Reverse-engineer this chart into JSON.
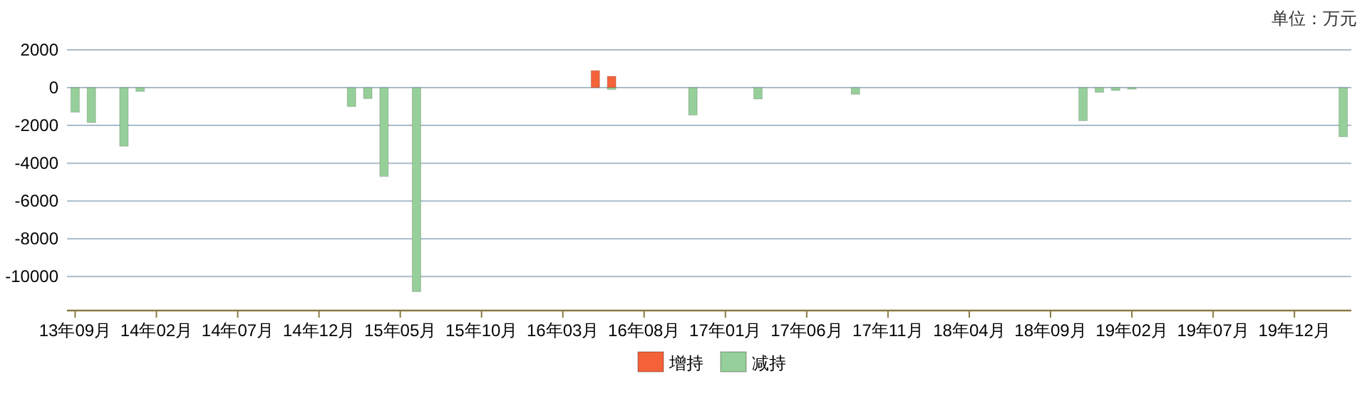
{
  "chart_data": {
    "type": "bar",
    "annotations": [
      "单位：万元"
    ],
    "categories": [
      "13年09月",
      null,
      null,
      null,
      null,
      "14年02月",
      null,
      null,
      null,
      null,
      "14年07月",
      null,
      null,
      null,
      null,
      "14年12月",
      null,
      null,
      null,
      null,
      "15年05月",
      null,
      null,
      null,
      null,
      "15年10月",
      null,
      null,
      null,
      null,
      "16年03月",
      null,
      null,
      null,
      null,
      "16年08月",
      null,
      null,
      null,
      null,
      "17年01月",
      null,
      null,
      null,
      null,
      "17年06月",
      null,
      null,
      null,
      null,
      "17年11月",
      null,
      null,
      null,
      null,
      "18年04月",
      null,
      null,
      null,
      null,
      "18年09月",
      null,
      null,
      null,
      null,
      "19年02月",
      null,
      null,
      null,
      null,
      "19年07月",
      null,
      null,
      null,
      null,
      "19年12月",
      null,
      null,
      null
    ],
    "series": [
      {
        "name": "增持",
        "color": "#f4623a",
        "values": [
          null,
          null,
          null,
          null,
          null,
          null,
          null,
          null,
          null,
          null,
          null,
          null,
          null,
          null,
          null,
          null,
          null,
          null,
          null,
          null,
          null,
          null,
          null,
          null,
          null,
          null,
          null,
          null,
          null,
          null,
          null,
          null,
          900,
          600,
          null,
          null,
          null,
          null,
          null,
          null,
          null,
          null,
          null,
          null,
          null,
          null,
          null,
          null,
          null,
          null,
          null,
          null,
          null,
          null,
          null,
          null,
          null,
          null,
          null,
          null,
          null,
          null,
          null,
          null,
          null,
          null,
          null,
          null,
          null,
          null,
          null,
          null,
          null,
          null,
          null,
          null,
          null,
          null,
          null
        ]
      },
      {
        "name": "减持",
        "color": "#96cf99",
        "values": [
          -1300,
          -1850,
          null,
          -3100,
          -200,
          null,
          null,
          null,
          null,
          null,
          null,
          null,
          null,
          null,
          null,
          null,
          null,
          -1000,
          -580,
          -4700,
          null,
          -10800,
          null,
          null,
          null,
          null,
          null,
          null,
          null,
          null,
          null,
          null,
          null,
          -100,
          null,
          null,
          null,
          null,
          -1450,
          null,
          null,
          null,
          -600,
          null,
          null,
          null,
          null,
          null,
          -350,
          null,
          null,
          null,
          null,
          null,
          null,
          null,
          null,
          null,
          null,
          null,
          null,
          null,
          -1750,
          -250,
          -150,
          -80,
          null,
          null,
          null,
          null,
          null,
          null,
          null,
          null,
          null,
          null,
          null,
          null,
          -2600
        ]
      }
    ],
    "ylim": [
      -11800,
      2000
    ],
    "yticks": [
      -10000,
      -8000,
      -6000,
      -4000,
      -2000,
      0,
      2000
    ],
    "grid": "y",
    "legend": "bottom"
  }
}
